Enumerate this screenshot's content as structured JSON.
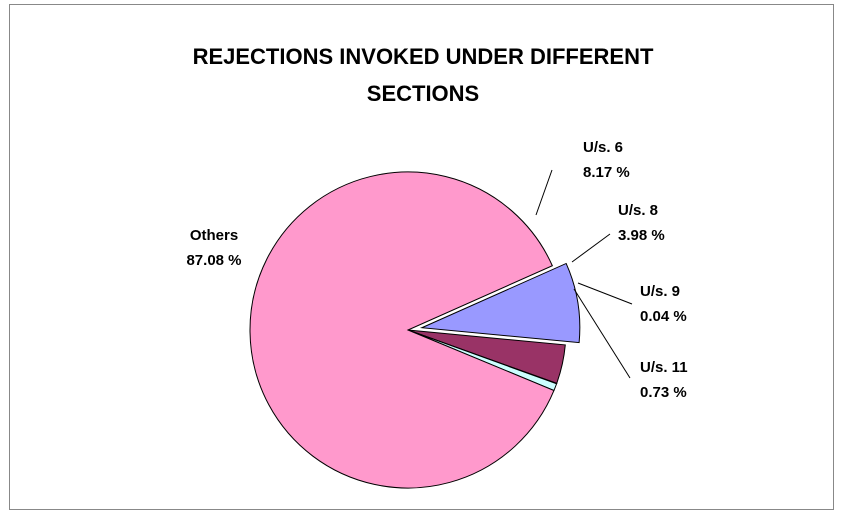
{
  "chart_data": {
    "type": "pie",
    "title_lines": [
      "REJECTIONS INVOKED UNDER DIFFERENT",
      "SECTIONS"
    ],
    "slices": [
      {
        "name": "U/s. 6",
        "value": 8.17,
        "value_label": "8.17 %",
        "color": "#9999FF",
        "exploded": true
      },
      {
        "name": "U/s. 8",
        "value": 3.98,
        "value_label": "3.98 %",
        "color": "#993366",
        "exploded": false
      },
      {
        "name": "U/s. 9",
        "value": 0.04,
        "value_label": "0.04 %",
        "color": "#FFFFCC",
        "exploded": false
      },
      {
        "name": "U/s. 11",
        "value": 0.73,
        "value_label": "0.73 %",
        "color": "#CCFFFF",
        "exploded": false
      },
      {
        "name": "Others",
        "value": 87.08,
        "value_label": "87.08 %",
        "color": "#FF99CC",
        "exploded": false
      }
    ],
    "legend": "none"
  }
}
